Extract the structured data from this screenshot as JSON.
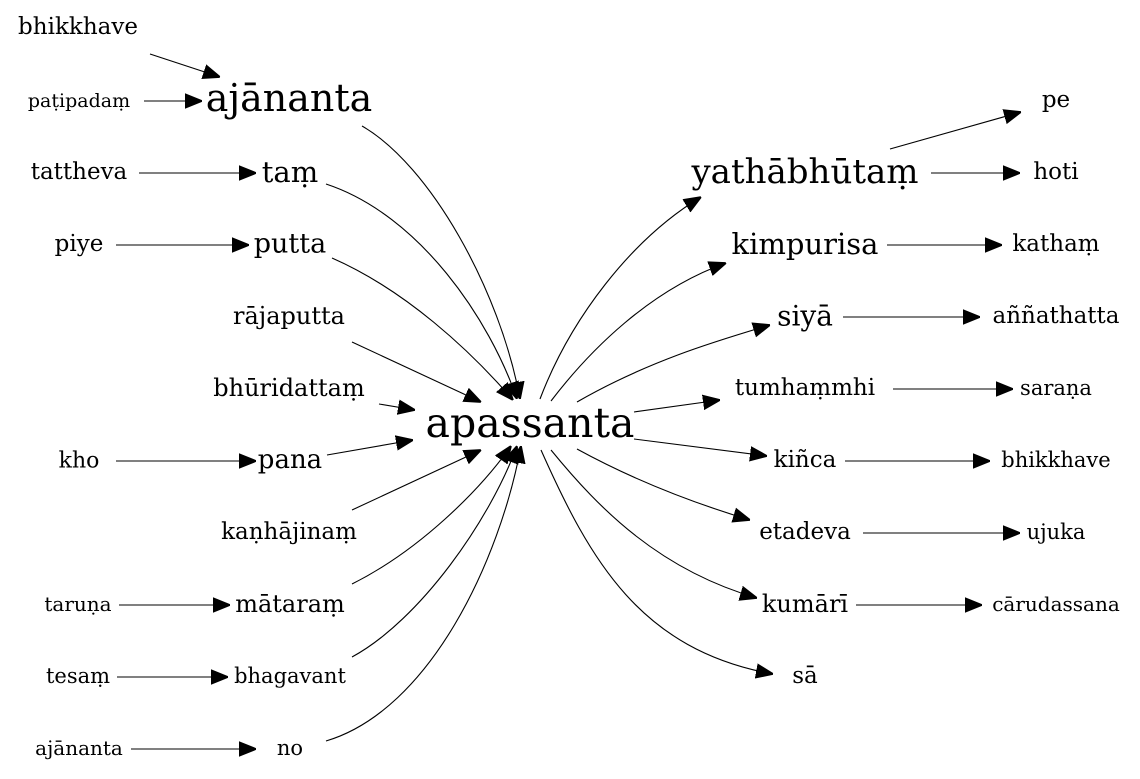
{
  "nodes": {
    "bhikkhave_l": "bhikkhave",
    "patipadam": "paṭipadaṃ",
    "ajananta_big": "ajānanta",
    "tattheva": "tattheva",
    "tam": "taṃ",
    "piye": "piye",
    "putta": "putta",
    "rajaputta": "rājaputta",
    "bhuridattam": "bhūridattaṃ",
    "apassanta": "apassanta",
    "kho": "kho",
    "pana": "pana",
    "kanhajinam": "kaṇhājinaṃ",
    "taruna": "taruṇa",
    "mataram": "mātaraṃ",
    "tesam": "tesaṃ",
    "bhagavant": "bhagavant",
    "ajananta_small": "ajānanta",
    "no": "no",
    "yathabhutam": "yathābhūtaṃ",
    "pe": "pe",
    "hoti": "hoti",
    "kimpurisa": "kimpurisa",
    "katham": "kathaṃ",
    "siya": "siyā",
    "annathatta": "aññathatta",
    "tumhammhi": "tumhaṃmhi",
    "sarana": "saraṇa",
    "kinca": "kiñca",
    "bhikkhave_r": "bhikkhave",
    "etadeva": "etadeva",
    "ujuka": "ujuka",
    "kumari": "kumārī",
    "carudassana": "cārudassana",
    "sa": "sā"
  }
}
